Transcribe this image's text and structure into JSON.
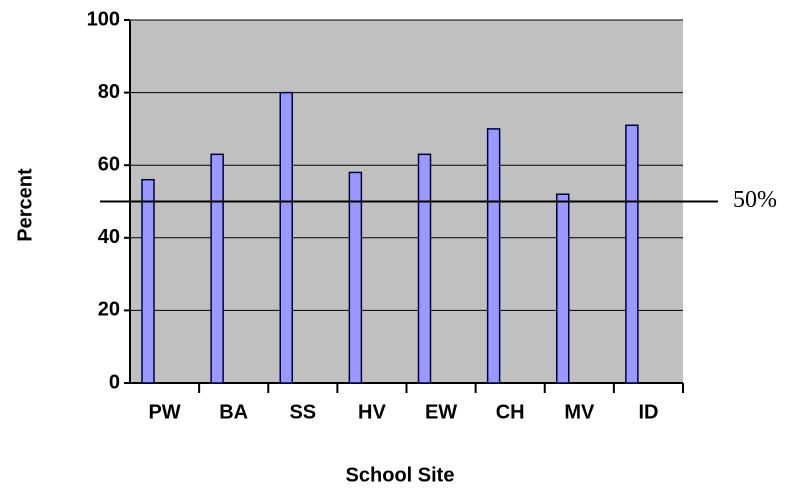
{
  "chart_data": {
    "type": "bar",
    "categories": [
      "PW",
      "BA",
      "SS",
      "HV",
      "EW",
      "CH",
      "MV",
      "ID"
    ],
    "values": [
      56,
      63,
      80,
      58,
      63,
      70,
      52,
      71
    ],
    "color": "#9999ff",
    "ylim": [
      0,
      100
    ],
    "yticks": [
      0,
      20,
      40,
      60,
      80,
      100
    ],
    "grid": true,
    "xlabel": "School Site",
    "ylabel": "Percent",
    "reference_line": {
      "value": 50,
      "label": "50%"
    }
  }
}
